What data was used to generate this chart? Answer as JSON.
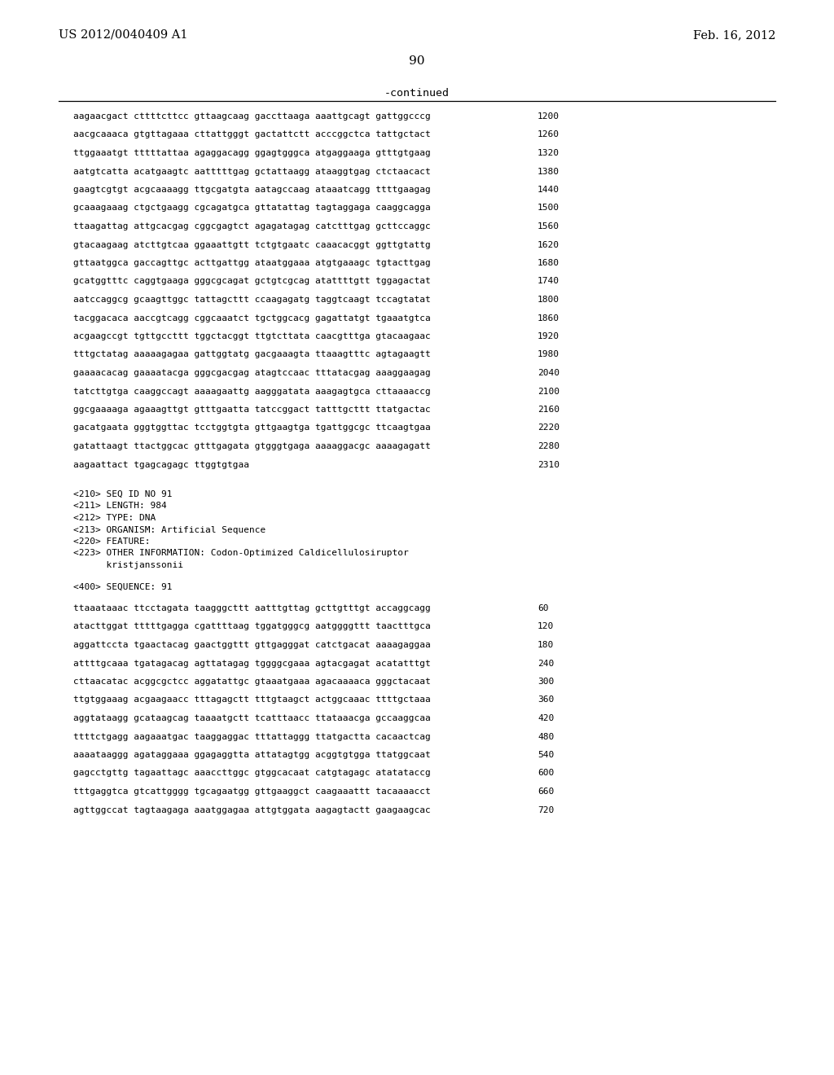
{
  "header_left": "US 2012/0040409 A1",
  "header_right": "Feb. 16, 2012",
  "page_number": "90",
  "continued_label": "-continued",
  "background_color": "#ffffff",
  "text_color": "#000000",
  "sequence_lines": [
    [
      "aagaacgact cttttcttcc gttaagcaag gaccttaaga aaattgcagt gattggcccg",
      "1200"
    ],
    [
      "aacgcaaaca gtgttagaaa cttattgggt gactattctt acccggctca tattgctact",
      "1260"
    ],
    [
      "ttggaaatgt tttttattaa agaggacagg ggagtgggca atgaggaaga gtttgtgaag",
      "1320"
    ],
    [
      "aatgtcatta acatgaagtc aatttttgag gctattaagg ataaggtgag ctctaacact",
      "1380"
    ],
    [
      "gaagtcgtgt acgcaaaagg ttgcgatgta aatagccaag ataaatcagg ttttgaagag",
      "1440"
    ],
    [
      "gcaaagaaag ctgctgaagg cgcagatgca gttatattag tagtaggaga caaggcagga",
      "1500"
    ],
    [
      "ttaagattag attgcacgag cggcgagtct agagatagag catctttgag gcttccaggc",
      "1560"
    ],
    [
      "gtacaagaag atcttgtcaa ggaaattgtt tctgtgaatc caaacacggt ggttgtattg",
      "1620"
    ],
    [
      "gttaatggca gaccagttgc acttgattgg ataatggaaa atgtgaaagc tgtacttgag",
      "1680"
    ],
    [
      "gcatggtttc caggtgaaga gggcgcagat gctgtcgcag atattttgtt tggagactat",
      "1740"
    ],
    [
      "aatccaggcg gcaagttggc tattagcttt ccaagagatg taggtcaagt tccagtatat",
      "1800"
    ],
    [
      "tacggacaca aaccgtcagg cggcaaatct tgctggcacg gagattatgt tgaaatgtca",
      "1860"
    ],
    [
      "acgaagccgt tgttgccttt tggctacggt ttgtcttata caacgtttga gtacaagaac",
      "1920"
    ],
    [
      "tttgctatag aaaaagagaa gattggtatg gacgaaagta ttaaagtttc agtagaagtt",
      "1980"
    ],
    [
      "gaaaacacag gaaaatacga gggcgacgag atagtccaac tttatacgag aaaggaagag",
      "2040"
    ],
    [
      "tatcttgtga caaggccagt aaaagaattg aagggatata aaagagtgca cttaaaaccg",
      "2100"
    ],
    [
      "ggcgaaaaga agaaagttgt gtttgaatta tatccggact tatttgcttt ttatgactac",
      "2160"
    ],
    [
      "gacatgaata gggtggttac tcctggtgta gttgaagtga tgattggcgc ttcaagtgaa",
      "2220"
    ],
    [
      "gatattaagt ttactggcac gtttgagata gtgggtgaga aaaaggacgc aaaagagatt",
      "2280"
    ],
    [
      "aagaattact tgagcagagc ttggtgtgaa",
      "2310"
    ]
  ],
  "metadata_lines": [
    "<210> SEQ ID NO 91",
    "<211> LENGTH: 984",
    "<212> TYPE: DNA",
    "<213> ORGANISM: Artificial Sequence",
    "<220> FEATURE:",
    "<223> OTHER INFORMATION: Codon-Optimized Caldicellulosiruptor",
    "      kristjanssonii"
  ],
  "seq400_line": "<400> SEQUENCE: 91",
  "seq_lines_91": [
    [
      "ttaaataaac ttcctagata taagggcttt aatttgttag gcttgtttgt accaggcagg",
      "60"
    ],
    [
      "atacttggat tttttgagga cgattttaag tggatgggcg aatggggttt taactttgca",
      "120"
    ],
    [
      "aggattccta tgaactacag gaactggttt gttgagggat catctgacat aaaagaggaa",
      "180"
    ],
    [
      "attttgcaaa tgatagacag agttatagag tggggcgaaa agtacgagat acatatttgt",
      "240"
    ],
    [
      "cttaacatac acggcgctcc aggatattgc gtaaatgaaa agacaaaaca gggctacaat",
      "300"
    ],
    [
      "ttgtggaaag acgaagaacc tttagagctt tttgtaagct actggcaaac ttttgctaaa",
      "360"
    ],
    [
      "aggtataagg gcataagcag taaaatgctt tcatttaacc ttataaacga gccaaggcaa",
      "420"
    ],
    [
      "ttttctgagg aagaaatgac taaggaggac tttattaggg ttatgactta cacaactcag",
      "480"
    ],
    [
      "aaaataaggg agataggaaa ggagaggtta attatagtgg acggtgtgga ttatggcaat",
      "540"
    ],
    [
      "gagcctgttg tagaattagc aaaccttggc gtggcacaat catgtagagc atatataccg",
      "600"
    ],
    [
      "tttgaggtca gtcattgggg tgcagaatgg gttgaaggct caagaaattt tacaaaacct",
      "660"
    ],
    [
      "agttggccat tagtaagaga aaatggagaa attgtggata aagagtactt gaagaagcac",
      "720"
    ]
  ]
}
